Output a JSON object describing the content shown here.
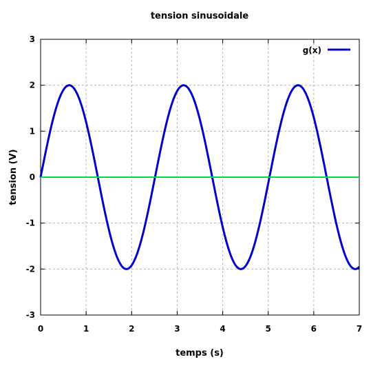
{
  "chart_data": {
    "type": "line",
    "title": "tension sinusoidale",
    "xlabel": "temps (s)",
    "ylabel": "tension (V)",
    "xlim": [
      0,
      7
    ],
    "ylim": [
      -3,
      3
    ],
    "x_ticks": [
      "0",
      "1",
      "2",
      "3",
      "4",
      "5",
      "6",
      "7"
    ],
    "y_ticks": [
      "3",
      "2",
      "1",
      "0",
      "-1",
      "-2",
      "-3"
    ],
    "grid": true,
    "legend_position": "top-right",
    "series": [
      {
        "name": "g(x)",
        "color": "#0000cc",
        "function": "sine",
        "amplitude": 2,
        "period": 2.5133,
        "phase": 0,
        "x_range": [
          0,
          7
        ]
      },
      {
        "name": "",
        "color": "#00dd44",
        "function": "constant",
        "value": 0,
        "x_range": [
          0,
          7
        ]
      }
    ]
  }
}
